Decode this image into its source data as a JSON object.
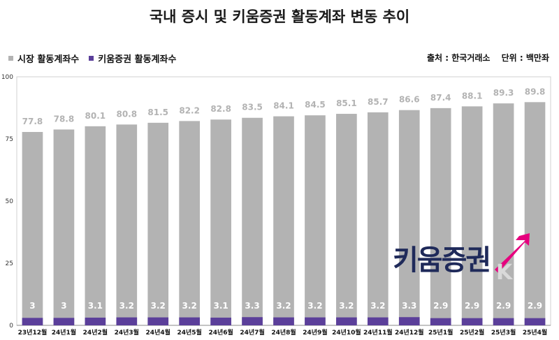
{
  "title": "국내 증시 및 키움증권 활동계좌 변동 추이",
  "legend": [
    {
      "name": "시장 활동계좌수",
      "color": "#b3b3b3"
    },
    {
      "name": "키움증권 활동계좌수",
      "color": "#5b3f9a"
    }
  ],
  "source": {
    "source_label": "출처 : 한국거래소",
    "unit_label": "단위 : 백만좌"
  },
  "logo": {
    "text": "키움증권",
    "accent_color": "#e6007e"
  },
  "chart_data": {
    "type": "bar",
    "title": "국내 증시 및 키움증권 활동계좌 변동 추이",
    "xlabel": "",
    "ylabel": "",
    "ylim": [
      0,
      100
    ],
    "yticks": [
      0,
      25,
      50,
      75,
      100
    ],
    "grid": false,
    "legend_position": "top-left",
    "categories": [
      "23년12월",
      "24년1월",
      "24년2월",
      "24년3월",
      "24년4월",
      "24년5월",
      "24년6월",
      "24년7월",
      "24년8월",
      "24년9월",
      "24년10월",
      "24년11월",
      "24년12월",
      "25년1월",
      "25년2월",
      "25년3월",
      "25년4월"
    ],
    "series": [
      {
        "name": "시장 활동계좌수",
        "color": "#b3b3b3",
        "values": [
          77.8,
          78.8,
          80.1,
          80.8,
          81.5,
          82.2,
          82.8,
          83.5,
          84.1,
          84.5,
          85.1,
          85.7,
          86.6,
          87.4,
          88.1,
          89.3,
          89.8
        ]
      },
      {
        "name": "키움증권 활동계좌수",
        "color": "#5b3f9a",
        "values": [
          3,
          3,
          3.1,
          3.2,
          3.2,
          3.2,
          3.1,
          3.3,
          3.2,
          3.2,
          3.2,
          3.2,
          3.3,
          2.9,
          2.9,
          2.9,
          2.9
        ]
      }
    ]
  }
}
